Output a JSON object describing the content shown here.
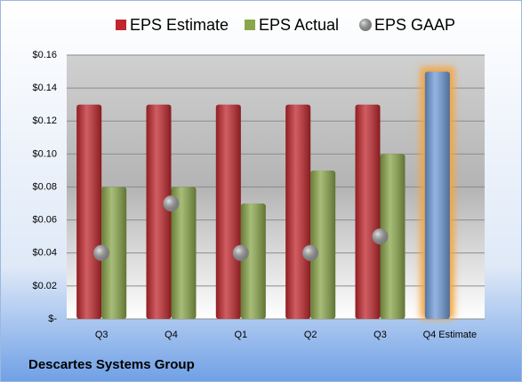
{
  "chart_data": {
    "type": "bar",
    "footer": "Descartes Systems Group",
    "categories": [
      "Q3",
      "Q4",
      "Q1",
      "Q2",
      "Q3",
      "Q4 Estimate"
    ],
    "series": [
      {
        "name": "EPS Estimate",
        "color": "#c0272d",
        "colors": [
          "#c0272d",
          "#c0272d",
          "#c0272d",
          "#c0272d",
          "#c0272d",
          "#6f9bd8"
        ],
        "values": [
          0.13,
          0.13,
          0.13,
          0.13,
          0.13,
          0.15
        ]
      },
      {
        "name": "EPS Actual",
        "color": "#8aa64a",
        "values": [
          0.08,
          0.08,
          0.07,
          0.09,
          0.1,
          null
        ]
      },
      {
        "name": "EPS GAAP",
        "color": "#a6a6a6",
        "marker": "circle",
        "values": [
          0.04,
          0.07,
          0.04,
          0.04,
          0.05,
          null
        ]
      }
    ],
    "ylim": [
      0,
      0.16
    ],
    "yticks": [
      {
        "value": 0,
        "label": "$-"
      },
      {
        "value": 0.02,
        "label": "$0.02"
      },
      {
        "value": 0.04,
        "label": "$0.04"
      },
      {
        "value": 0.06,
        "label": "$0.06"
      },
      {
        "value": 0.08,
        "label": "$0.08"
      },
      {
        "value": 0.1,
        "label": "$0.10"
      },
      {
        "value": 0.12,
        "label": "$0.12"
      },
      {
        "value": 0.14,
        "label": "$0.14"
      },
      {
        "value": 0.16,
        "label": "$0.16"
      }
    ],
    "grid": true
  }
}
